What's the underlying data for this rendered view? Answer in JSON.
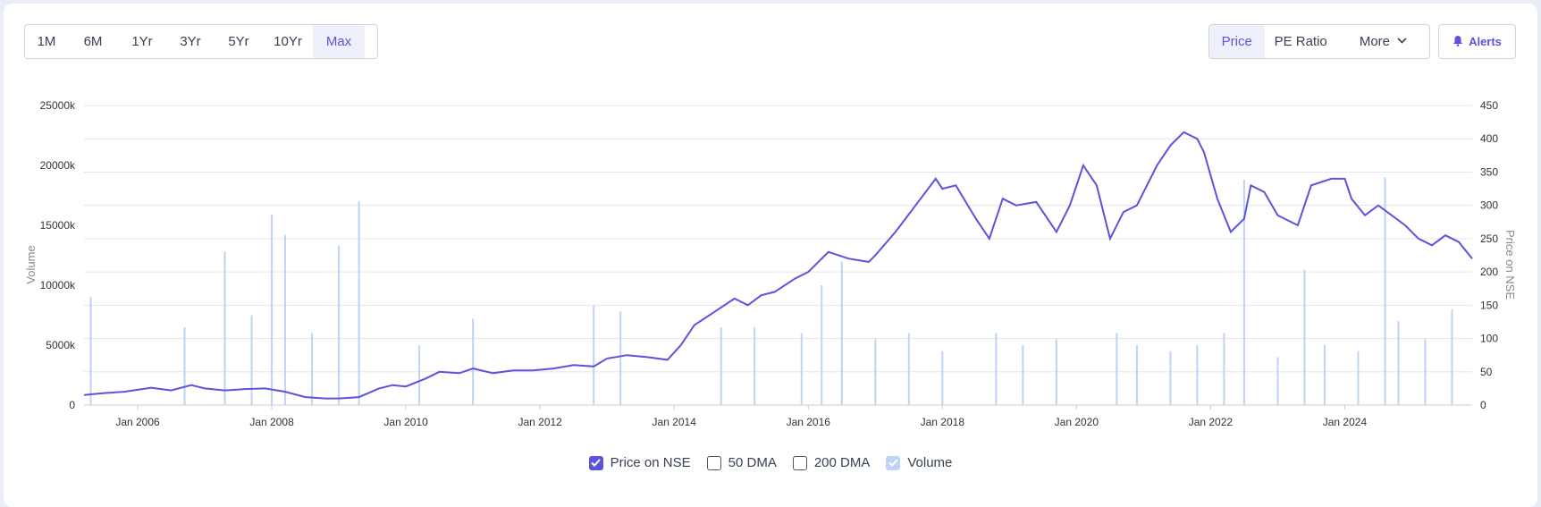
{
  "range_buttons": [
    {
      "label": "1M",
      "active": false
    },
    {
      "label": "6M",
      "active": false
    },
    {
      "label": "1Yr",
      "active": false
    },
    {
      "label": "3Yr",
      "active": false
    },
    {
      "label": "5Yr",
      "active": false
    },
    {
      "label": "10Yr",
      "active": false
    },
    {
      "label": "Max",
      "active": true
    }
  ],
  "mode_buttons": {
    "price": "Price",
    "pe_ratio": "PE Ratio",
    "more": "More"
  },
  "alerts_label": "Alerts",
  "colors": {
    "accent": "#5b53dc",
    "price_line": "#5b53dc",
    "volume_bar": "#bfd2f7"
  },
  "legend": [
    {
      "label": "Price on NSE",
      "checked": true
    },
    {
      "label": "50 DMA",
      "checked": false
    },
    {
      "label": "200 DMA",
      "checked": false
    },
    {
      "label": "Volume",
      "checked": true
    }
  ],
  "chart_data": {
    "type": "line",
    "xlabel": "",
    "ylabel_left": "Volume",
    "ylabel_right": "Price on NSE",
    "x_ticks": [
      "Jan 2006",
      "Jan 2008",
      "Jan 2010",
      "Jan 2012",
      "Jan 2014",
      "Jan 2016",
      "Jan 2018",
      "Jan 2020",
      "Jan 2022",
      "Jan 2024"
    ],
    "y_left_ticks": [
      "0",
      "5000k",
      "10000k",
      "15000k",
      "20000k",
      "25000k"
    ],
    "y_right_ticks": [
      "0",
      "50",
      "100",
      "150",
      "200",
      "250",
      "300",
      "350",
      "400",
      "450"
    ],
    "x_range": [
      2005.2,
      2025.9
    ],
    "y_left_range": [
      0,
      25000
    ],
    "y_right_range": [
      0,
      450
    ],
    "grid": true,
    "series": [
      {
        "name": "Price on NSE",
        "axis": "right",
        "x": [
          2005.2,
          2005.5,
          2005.8,
          2006.2,
          2006.5,
          2006.8,
          2007.0,
          2007.3,
          2007.6,
          2007.9,
          2008.2,
          2008.5,
          2008.8,
          2009.0,
          2009.3,
          2009.6,
          2009.8,
          2010.0,
          2010.3,
          2010.5,
          2010.8,
          2011.0,
          2011.3,
          2011.6,
          2011.9,
          2012.2,
          2012.5,
          2012.8,
          2013.0,
          2013.3,
          2013.6,
          2013.9,
          2014.1,
          2014.3,
          2014.6,
          2014.9,
          2015.1,
          2015.3,
          2015.5,
          2015.8,
          2016.0,
          2016.3,
          2016.6,
          2016.9,
          2017.0,
          2017.3,
          2017.6,
          2017.9,
          2018.0,
          2018.2,
          2018.5,
          2018.7,
          2018.9,
          2019.1,
          2019.4,
          2019.7,
          2019.9,
          2020.1,
          2020.3,
          2020.5,
          2020.7,
          2020.9,
          2021.0,
          2021.2,
          2021.4,
          2021.6,
          2021.8,
          2021.9,
          2022.1,
          2022.3,
          2022.5,
          2022.6,
          2022.8,
          2023.0,
          2023.3,
          2023.5,
          2023.8,
          2024.0,
          2024.1,
          2024.3,
          2024.5,
          2024.7,
          2024.9,
          2025.1,
          2025.3,
          2025.5,
          2025.7,
          2025.9
        ],
        "y": [
          15,
          18,
          20,
          26,
          22,
          30,
          25,
          22,
          24,
          25,
          20,
          12,
          10,
          10,
          12,
          25,
          30,
          28,
          40,
          50,
          48,
          55,
          48,
          52,
          52,
          55,
          60,
          58,
          70,
          75,
          72,
          68,
          90,
          120,
          140,
          160,
          150,
          165,
          170,
          190,
          200,
          230,
          220,
          215,
          225,
          260,
          300,
          340,
          325,
          330,
          280,
          250,
          310,
          300,
          305,
          260,
          300,
          360,
          330,
          250,
          290,
          300,
          320,
          360,
          390,
          410,
          400,
          380,
          310,
          260,
          280,
          330,
          320,
          285,
          270,
          330,
          340,
          340,
          310,
          285,
          300,
          285,
          270,
          250,
          240,
          255,
          245,
          220
        ]
      },
      {
        "name": "Volume",
        "axis": "left",
        "type": "bar",
        "x": [
          2005.3,
          2006.7,
          2007.3,
          2007.7,
          2008.0,
          2008.2,
          2008.6,
          2009.0,
          2009.3,
          2010.2,
          2011.0,
          2012.8,
          2013.2,
          2014.7,
          2015.2,
          2015.9,
          2016.2,
          2016.5,
          2017.0,
          2017.5,
          2018.0,
          2018.8,
          2019.2,
          2019.7,
          2020.6,
          2020.9,
          2021.4,
          2021.8,
          2022.2,
          2022.5,
          2023.0,
          2023.4,
          2023.7,
          2024.2,
          2024.6,
          2024.8,
          2025.2,
          2025.6
        ],
        "y": [
          9000,
          6500,
          12800,
          7500,
          15900,
          14200,
          6000,
          13300,
          17000,
          5000,
          7200,
          8300,
          7800,
          6500,
          6500,
          6000,
          10000,
          12000,
          5500,
          6000,
          4500,
          6000,
          5000,
          5500,
          6000,
          5000,
          4500,
          5000,
          6000,
          18800,
          4000,
          11300,
          5000,
          4500,
          19000,
          7000,
          5500,
          8000
        ]
      }
    ]
  }
}
